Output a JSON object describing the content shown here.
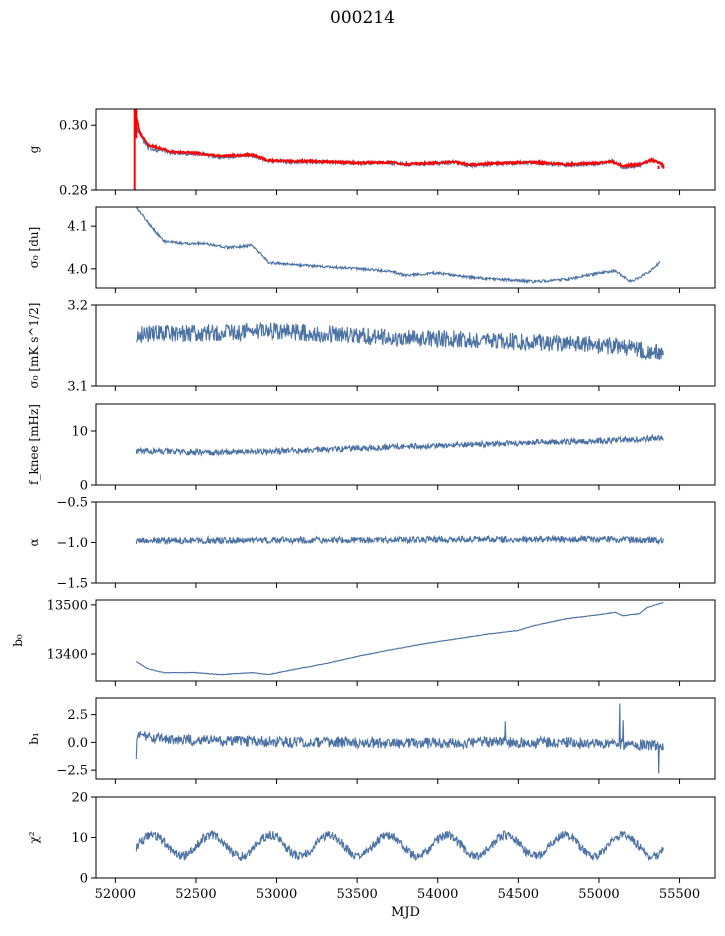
{
  "figure_title": "000214",
  "colors": {
    "series": "#4c72a4",
    "fit": "#ff0000",
    "axis": "#000000"
  },
  "chart_data": [
    {
      "type": "line",
      "ylabel": "g",
      "ylim": [
        0.28,
        0.305
      ],
      "yticks": [
        0.28,
        0.3
      ],
      "ytick_labels": [
        "0.28",
        "0.30"
      ],
      "series": [
        {
          "color": "#4c72a4",
          "knots": [
            [
              52120,
              0.3
            ],
            [
              52200,
              0.293
            ],
            [
              52350,
              0.2915
            ],
            [
              52500,
              0.2912
            ],
            [
              52650,
              0.2902
            ],
            [
              52850,
              0.2907
            ],
            [
              52950,
              0.289
            ],
            [
              53100,
              0.2887
            ],
            [
              53300,
              0.2887
            ],
            [
              53500,
              0.2882
            ],
            [
              53700,
              0.2885
            ],
            [
              53800,
              0.2878
            ],
            [
              54000,
              0.2882
            ],
            [
              54100,
              0.2887
            ],
            [
              54200,
              0.2875
            ],
            [
              54400,
              0.2882
            ],
            [
              54600,
              0.2885
            ],
            [
              54800,
              0.2876
            ],
            [
              55000,
              0.2882
            ],
            [
              55080,
              0.289
            ],
            [
              55150,
              0.287
            ],
            [
              55250,
              0.2876
            ],
            [
              55330,
              0.2893
            ],
            [
              55400,
              0.2875
            ]
          ],
          "noise": 0.0006
        },
        {
          "color": "#ff0000",
          "knots": [
            [
              52120,
              0.305
            ],
            [
              52150,
              0.298
            ],
            [
              52200,
              0.294
            ],
            [
              52350,
              0.2918
            ],
            [
              52500,
              0.2914
            ],
            [
              52650,
              0.2905
            ],
            [
              52850,
              0.2909
            ],
            [
              52950,
              0.2891
            ],
            [
              53100,
              0.2889
            ],
            [
              53300,
              0.2888
            ],
            [
              53500,
              0.2884
            ],
            [
              53700,
              0.2886
            ],
            [
              53800,
              0.288
            ],
            [
              54000,
              0.2884
            ],
            [
              54100,
              0.2887
            ],
            [
              54200,
              0.2878
            ],
            [
              54400,
              0.2884
            ],
            [
              54600,
              0.2886
            ],
            [
              54800,
              0.2879
            ],
            [
              55000,
              0.2884
            ],
            [
              55080,
              0.2888
            ],
            [
              55150,
              0.2874
            ],
            [
              55250,
              0.2879
            ],
            [
              55330,
              0.2893
            ],
            [
              55400,
              0.2878
            ]
          ],
          "noise": 0.0003
        }
      ]
    },
    {
      "type": "line",
      "ylabel": "σ₀ [du]",
      "ylim": [
        3.955,
        4.145
      ],
      "yticks": [
        4.0,
        4.1
      ],
      "ytick_labels": [
        "4.0",
        "4.1"
      ],
      "series": [
        {
          "color": "#4c72a4",
          "knots": [
            [
              52130,
              4.145
            ],
            [
              52200,
              4.11
            ],
            [
              52300,
              4.065
            ],
            [
              52400,
              4.06
            ],
            [
              52550,
              4.06
            ],
            [
              52700,
              4.05
            ],
            [
              52850,
              4.055
            ],
            [
              52950,
              4.015
            ],
            [
              53100,
              4.01
            ],
            [
              53300,
              4.005
            ],
            [
              53500,
              4.0
            ],
            [
              53700,
              3.995
            ],
            [
              53800,
              3.985
            ],
            [
              54000,
              3.99
            ],
            [
              54200,
              3.98
            ],
            [
              54400,
              3.975
            ],
            [
              54600,
              3.97
            ],
            [
              54800,
              3.975
            ],
            [
              55000,
              3.99
            ],
            [
              55100,
              3.995
            ],
            [
              55200,
              3.97
            ],
            [
              55300,
              3.99
            ],
            [
              55380,
              4.015
            ]
          ],
          "noise": 0.003
        }
      ]
    },
    {
      "type": "line",
      "ylabel": "σ₀ [mK s^1/2]",
      "ylim": [
        3.1,
        3.2
      ],
      "yticks": [
        3.1,
        3.2
      ],
      "ytick_labels": [
        "3.1",
        "3.2"
      ],
      "series": [
        {
          "color": "#4c72a4",
          "knots": [
            [
              52130,
              3.165
            ],
            [
              52500,
              3.165
            ],
            [
              52900,
              3.168
            ],
            [
              53300,
              3.165
            ],
            [
              53700,
              3.16
            ],
            [
              54100,
              3.158
            ],
            [
              54500,
              3.155
            ],
            [
              54900,
              3.152
            ],
            [
              55200,
              3.148
            ],
            [
              55400,
              3.14
            ]
          ],
          "noise": 0.011
        }
      ]
    },
    {
      "type": "line",
      "ylabel": "f_knee [mHz]",
      "ylim": [
        0,
        15
      ],
      "yticks": [
        0,
        10
      ],
      "ytick_labels": [
        "0",
        "10"
      ],
      "series": [
        {
          "color": "#4c72a4",
          "knots": [
            [
              52130,
              6.3
            ],
            [
              52600,
              6.0
            ],
            [
              53000,
              6.3
            ],
            [
              53500,
              6.8
            ],
            [
              54000,
              7.3
            ],
            [
              54500,
              7.8
            ],
            [
              55000,
              8.2
            ],
            [
              55400,
              8.7
            ]
          ],
          "noise": 0.55
        }
      ]
    },
    {
      "type": "line",
      "ylabel": "α",
      "ylim": [
        -1.5,
        -0.5
      ],
      "yticks": [
        -1.5,
        -1.0,
        -0.5
      ],
      "ytick_labels": [
        "−1.5",
        "−1.0",
        "−0.5"
      ],
      "series": [
        {
          "color": "#4c72a4",
          "knots": [
            [
              52130,
              -0.98
            ],
            [
              52800,
              -0.97
            ],
            [
              53500,
              -0.97
            ],
            [
              54200,
              -0.96
            ],
            [
              54900,
              -0.96
            ],
            [
              55400,
              -0.97
            ]
          ],
          "noise": 0.04
        }
      ]
    },
    {
      "type": "line",
      "ylabel": "b₀",
      "ylim": [
        13345,
        13510
      ],
      "yticks": [
        13400,
        13500
      ],
      "ytick_labels": [
        "13400",
        "13500"
      ],
      "series": [
        {
          "color": "#4c72a4",
          "knots": [
            [
              52130,
              13385
            ],
            [
              52200,
              13370
            ],
            [
              52300,
              13362
            ],
            [
              52500,
              13362
            ],
            [
              52650,
              13358
            ],
            [
              52850,
              13362
            ],
            [
              52950,
              13358
            ],
            [
              53100,
              13368
            ],
            [
              53300,
              13380
            ],
            [
              53500,
              13395
            ],
            [
              53700,
              13408
            ],
            [
              53900,
              13420
            ],
            [
              54100,
              13430
            ],
            [
              54300,
              13440
            ],
            [
              54500,
              13448
            ],
            [
              54600,
              13458
            ],
            [
              54800,
              13472
            ],
            [
              55000,
              13480
            ],
            [
              55100,
              13485
            ],
            [
              55150,
              13478
            ],
            [
              55250,
              13482
            ],
            [
              55300,
              13495
            ],
            [
              55400,
              13505
            ]
          ],
          "noise": 0.6
        }
      ]
    },
    {
      "type": "line",
      "ylabel": "b₁",
      "ylim": [
        -3.3,
        4.0
      ],
      "yticks": [
        -2.5,
        0.0,
        2.5
      ],
      "ytick_labels": [
        "−2.5",
        "0.0",
        "2.5"
      ],
      "series": [
        {
          "color": "#4c72a4",
          "knots": [
            [
              52130,
              0.6
            ],
            [
              52300,
              0.3
            ],
            [
              52800,
              0.1
            ],
            [
              53300,
              0.0
            ],
            [
              53800,
              -0.1
            ],
            [
              54300,
              0.0
            ],
            [
              54800,
              0.0
            ],
            [
              55400,
              -0.3
            ]
          ],
          "noise": 0.5,
          "spikes": [
            [
              52125,
              -1.5
            ],
            [
              54420,
              1.9
            ],
            [
              55130,
              3.5
            ],
            [
              55150,
              2.0
            ],
            [
              55370,
              -2.8
            ]
          ]
        }
      ]
    },
    {
      "type": "line",
      "ylabel": "χ²",
      "ylim": [
        0,
        20
      ],
      "yticks": [
        0,
        10,
        20
      ],
      "ytick_labels": [
        "0",
        "10",
        "20"
      ],
      "xlabel": "MJD",
      "xticks": [
        52000,
        52500,
        53000,
        53500,
        54000,
        54500,
        55000,
        55500
      ],
      "xtick_labels": [
        "52000",
        "52500",
        "53000",
        "53500",
        "54000",
        "54500",
        "55000",
        "55500"
      ],
      "series": [
        {
          "color": "#4c72a4",
          "base": 8,
          "amp": 2.6,
          "period": 365.25,
          "phase": 52230,
          "noise": 1.1,
          "x_range": [
            52130,
            55400
          ]
        }
      ]
    }
  ],
  "x_domain": [
    51880,
    55720
  ]
}
